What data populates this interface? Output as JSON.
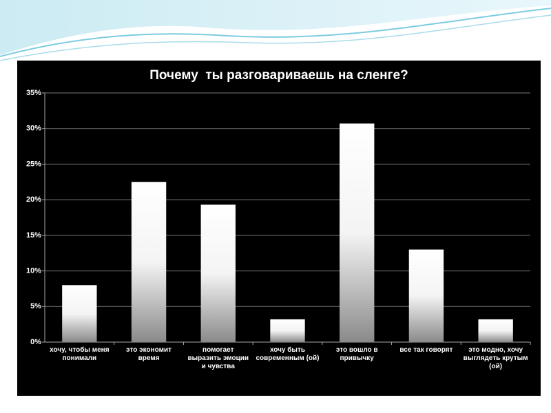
{
  "chart_data": {
    "type": "bar",
    "title": "Почему  ты разговариваешь на сленге?",
    "categories": [
      "хочу, чтобы меня понимали",
      "это экономит время",
      "помогает выразить эмоции и чувства",
      "хочу быть современным (ой)",
      "это вошло в привычку",
      "все так говорят",
      "это модно, хочу выглядеть крутым (ой)"
    ],
    "values": [
      8.0,
      22.5,
      19.3,
      3.2,
      30.7,
      13.0,
      3.2
    ],
    "color": "#ffffff",
    "ylim": [
      0,
      35
    ],
    "yticks": [
      {
        "value": 0,
        "label": "0%"
      },
      {
        "value": 5,
        "label": "5%"
      },
      {
        "value": 10,
        "label": "10%"
      },
      {
        "value": 15,
        "label": "15%"
      },
      {
        "value": 20,
        "label": "20%"
      },
      {
        "value": 25,
        "label": "25%"
      },
      {
        "value": 30,
        "label": "30%"
      },
      {
        "value": 35,
        "label": "35%"
      }
    ],
    "grid": true
  }
}
